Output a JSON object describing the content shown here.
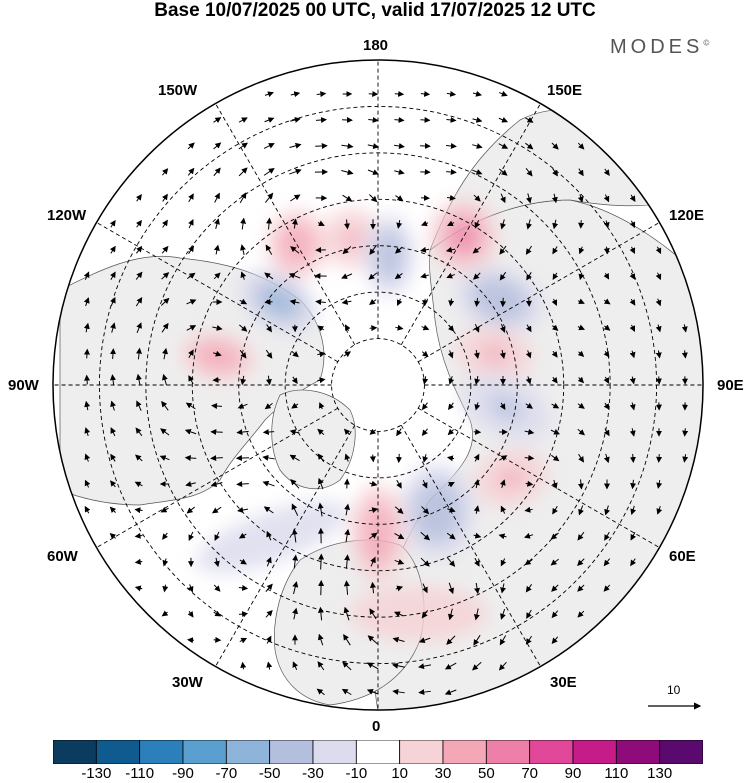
{
  "title": "Base 10/07/2025 00 UTC, valid 17/07/2025 12 UTC",
  "brand": "MODES",
  "brand_mark": "©",
  "longitude_labels": {
    "n180": "180",
    "w150": "150W",
    "e150": "150E",
    "w120": "120W",
    "e120": "120E",
    "w90": "90W",
    "e90": "90E",
    "w60": "60W",
    "e60": "60E",
    "w30": "30W",
    "e30": "30E",
    "s0": "0"
  },
  "reference_vector_label": "10",
  "colors": {
    "land": "#eeeeee",
    "ocean": "#ffffff",
    "coast": "#555555",
    "grid": "#000000"
  },
  "colorbar": {
    "boundaries": [
      "-130",
      "-110",
      "-90",
      "-70",
      "-50",
      "-30",
      "-10",
      "10",
      "30",
      "50",
      "70",
      "90",
      "110",
      "130"
    ],
    "colors": [
      "#0b3b5e",
      "#0f5a8f",
      "#2b7fba",
      "#5a9fd0",
      "#8fb4d9",
      "#b4bedd",
      "#dcdcee",
      "#ffffff",
      "#f6d3d6",
      "#f4a8b7",
      "#ee7fa8",
      "#e2489a",
      "#c51c8a",
      "#8f0b7a",
      "#5a0a6e"
    ]
  },
  "anomalies": [
    {
      "lon": -130,
      "lat": 62,
      "value": -75,
      "rx": 42,
      "ry": 28,
      "rot": 30
    },
    {
      "lon": -100,
      "lat": 55,
      "value": 55,
      "rx": 38,
      "ry": 24,
      "rot": 10
    },
    {
      "lon": -150,
      "lat": 55,
      "value": 55,
      "rx": 30,
      "ry": 35,
      "rot": 0
    },
    {
      "lon": -170,
      "lat": 58,
      "value": 40,
      "rx": 30,
      "ry": 30,
      "rot": 0
    },
    {
      "lon": 175,
      "lat": 62,
      "value": -55,
      "rx": 25,
      "ry": 40,
      "rot": 0
    },
    {
      "lon": 150,
      "lat": 53,
      "value": 70,
      "rx": 35,
      "ry": 38,
      "rot": 0
    },
    {
      "lon": 125,
      "lat": 58,
      "value": -65,
      "rx": 45,
      "ry": 32,
      "rot": 20
    },
    {
      "lon": 105,
      "lat": 64,
      "value": 45,
      "rx": 40,
      "ry": 26,
      "rot": 10
    },
    {
      "lon": 80,
      "lat": 62,
      "value": -50,
      "rx": 48,
      "ry": 30,
      "rot": 25
    },
    {
      "lon": 55,
      "lat": 55,
      "value": 40,
      "rx": 38,
      "ry": 28,
      "rot": -15
    },
    {
      "lon": 25,
      "lat": 60,
      "value": -60,
      "rx": 38,
      "ry": 48,
      "rot": 0
    },
    {
      "lon": 0,
      "lat": 58,
      "value": 55,
      "rx": 28,
      "ry": 50,
      "rot": 0
    },
    {
      "lon": -35,
      "lat": 50,
      "value": -35,
      "rx": 80,
      "ry": 25,
      "rot": -20
    },
    {
      "lon": 10,
      "lat": 40,
      "value": 30,
      "rx": 70,
      "ry": 28,
      "rot": 0
    }
  ]
}
